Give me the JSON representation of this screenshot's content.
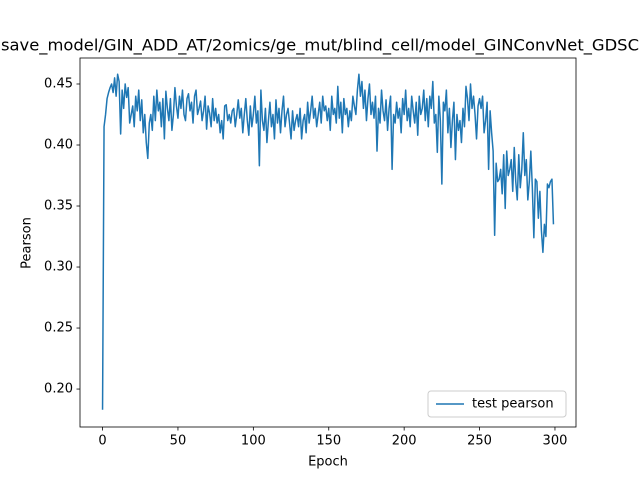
{
  "chart_data": {
    "type": "line",
    "title": "save_model/GIN_ADD_AT/2omics/ge_mut/blind_cell/model_GINConvNet_GDSC",
    "xlabel": "Epoch",
    "ylabel": "Pearson",
    "x": [
      0,
      1,
      2,
      3,
      4,
      5,
      6,
      7,
      8,
      9,
      10,
      11,
      12,
      13,
      14,
      15,
      16,
      17,
      18,
      19,
      20,
      21,
      22,
      23,
      24,
      25,
      26,
      27,
      28,
      29,
      30,
      31,
      32,
      33,
      34,
      35,
      36,
      37,
      38,
      39,
      40,
      41,
      42,
      43,
      44,
      45,
      46,
      47,
      48,
      49,
      50,
      51,
      52,
      53,
      54,
      55,
      56,
      57,
      58,
      59,
      60,
      61,
      62,
      63,
      64,
      65,
      66,
      67,
      68,
      69,
      70,
      71,
      72,
      73,
      74,
      75,
      76,
      77,
      78,
      79,
      80,
      81,
      82,
      83,
      84,
      85,
      86,
      87,
      88,
      89,
      90,
      91,
      92,
      93,
      94,
      95,
      96,
      97,
      98,
      99,
      100,
      101,
      102,
      103,
      104,
      105,
      106,
      107,
      108,
      109,
      110,
      111,
      112,
      113,
      114,
      115,
      116,
      117,
      118,
      119,
      120,
      121,
      122,
      123,
      124,
      125,
      126,
      127,
      128,
      129,
      130,
      131,
      132,
      133,
      134,
      135,
      136,
      137,
      138,
      139,
      140,
      141,
      142,
      143,
      144,
      145,
      146,
      147,
      148,
      149,
      150,
      151,
      152,
      153,
      154,
      155,
      156,
      157,
      158,
      159,
      160,
      161,
      162,
      163,
      164,
      165,
      166,
      167,
      168,
      169,
      170,
      171,
      172,
      173,
      174,
      175,
      176,
      177,
      178,
      179,
      180,
      181,
      182,
      183,
      184,
      185,
      186,
      187,
      188,
      189,
      190,
      191,
      192,
      193,
      194,
      195,
      196,
      197,
      198,
      199,
      200,
      201,
      202,
      203,
      204,
      205,
      206,
      207,
      208,
      209,
      210,
      211,
      212,
      213,
      214,
      215,
      216,
      217,
      218,
      219,
      220,
      221,
      222,
      223,
      224,
      225,
      226,
      227,
      228,
      229,
      230,
      231,
      232,
      233,
      234,
      235,
      236,
      237,
      238,
      239,
      240,
      241,
      242,
      243,
      244,
      245,
      246,
      247,
      248,
      249,
      250,
      251,
      252,
      253,
      254,
      255,
      256,
      257,
      258,
      259,
      260,
      261,
      262,
      263,
      264,
      265,
      266,
      267,
      268,
      269,
      270,
      271,
      272,
      273,
      274,
      275,
      276,
      277,
      278,
      279,
      280,
      281,
      282,
      283,
      284,
      285,
      286,
      287,
      288,
      289,
      290,
      291,
      292,
      293,
      294,
      295,
      296,
      297,
      298,
      299
    ],
    "series": [
      {
        "name": "test pearson",
        "color": "#1f77b4",
        "values": [
          0.183,
          0.415,
          0.425,
          0.438,
          0.443,
          0.447,
          0.45,
          0.443,
          0.455,
          0.44,
          0.458,
          0.452,
          0.409,
          0.445,
          0.43,
          0.45,
          0.439,
          0.447,
          0.418,
          0.425,
          0.432,
          0.415,
          0.44,
          0.428,
          0.445,
          0.42,
          0.437,
          0.41,
          0.425,
          0.402,
          0.389,
          0.418,
          0.425,
          0.412,
          0.44,
          0.42,
          0.445,
          0.428,
          0.435,
          0.415,
          0.438,
          0.405,
          0.444,
          0.43,
          0.42,
          0.438,
          0.412,
          0.425,
          0.447,
          0.432,
          0.422,
          0.44,
          0.43,
          0.445,
          0.425,
          0.42,
          0.438,
          0.442,
          0.428,
          0.435,
          0.418,
          0.44,
          0.445,
          0.425,
          0.43,
          0.436,
          0.42,
          0.428,
          0.44,
          0.413,
          0.432,
          0.426,
          0.415,
          0.438,
          0.42,
          0.43,
          0.418,
          0.425,
          0.41,
          0.42,
          0.405,
          0.432,
          0.433,
          0.42,
          0.425,
          0.418,
          0.428,
          0.43,
          0.415,
          0.425,
          0.437,
          0.422,
          0.43,
          0.41,
          0.425,
          0.438,
          0.42,
          0.408,
          0.432,
          0.415,
          0.425,
          0.44,
          0.418,
          0.428,
          0.383,
          0.445,
          0.42,
          0.412,
          0.43,
          0.402,
          0.42,
          0.435,
          0.415,
          0.425,
          0.405,
          0.437,
          0.418,
          0.43,
          0.41,
          0.428,
          0.44,
          0.415,
          0.425,
          0.43,
          0.418,
          0.405,
          0.428,
          0.412,
          0.42,
          0.425,
          0.415,
          0.43,
          0.405,
          0.42,
          0.425,
          0.41,
          0.435,
          0.418,
          0.428,
          0.44,
          0.422,
          0.43,
          0.415,
          0.425,
          0.435,
          0.418,
          0.44,
          0.428,
          0.432,
          0.42,
          0.43,
          0.412,
          0.44,
          0.425,
          0.43,
          0.418,
          0.448,
          0.422,
          0.435,
          0.41,
          0.438,
          0.425,
          0.43,
          0.415,
          0.428,
          0.42,
          0.44,
          0.432,
          0.425,
          0.445,
          0.458,
          0.44,
          0.452,
          0.43,
          0.445,
          0.42,
          0.438,
          0.45,
          0.425,
          0.435,
          0.422,
          0.44,
          0.395,
          0.43,
          0.418,
          0.445,
          0.428,
          0.42,
          0.437,
          0.412,
          0.43,
          0.44,
          0.38,
          0.425,
          0.418,
          0.435,
          0.422,
          0.43,
          0.41,
          0.438,
          0.425,
          0.445,
          0.42,
          0.43,
          0.415,
          0.44,
          0.428,
          0.418,
          0.435,
          0.408,
          0.44,
          0.425,
          0.43,
          0.445,
          0.42,
          0.438,
          0.415,
          0.44,
          0.43,
          0.452,
          0.418,
          0.425,
          0.394,
          0.44,
          0.42,
          0.368,
          0.435,
          0.428,
          0.445,
          0.41,
          0.43,
          0.398,
          0.42,
          0.435,
          0.388,
          0.425,
          0.412,
          0.42,
          0.402,
          0.43,
          0.415,
          0.448,
          0.438,
          0.42,
          0.45,
          0.43,
          0.44,
          0.425,
          0.405,
          0.432,
          0.438,
          0.43,
          0.44,
          0.41,
          0.42,
          0.435,
          0.38,
          0.428,
          0.41,
          0.395,
          0.326,
          0.385,
          0.37,
          0.372,
          0.38,
          0.36,
          0.392,
          0.348,
          0.395,
          0.375,
          0.38,
          0.388,
          0.362,
          0.398,
          0.37,
          0.355,
          0.392,
          0.365,
          0.38,
          0.41,
          0.375,
          0.388,
          0.355,
          0.37,
          0.395,
          0.365,
          0.324,
          0.372,
          0.37,
          0.34,
          0.362,
          0.33,
          0.312,
          0.335,
          0.325,
          0.368,
          0.365,
          0.37,
          0.372,
          0.335
        ]
      }
    ],
    "xlim": [
      -14.95,
      313.95
    ],
    "xticks": [
      0,
      50,
      100,
      150,
      200,
      250,
      300
    ],
    "ylim": [
      0.1689,
      0.4713
    ],
    "yticks": [
      {
        "value": 0.2,
        "label": "0.20"
      },
      {
        "value": 0.25,
        "label": "0.25"
      },
      {
        "value": 0.3,
        "label": "0.30"
      },
      {
        "value": 0.35,
        "label": "0.35"
      },
      {
        "value": 0.4,
        "label": "0.40"
      },
      {
        "value": 0.45,
        "label": "0.45"
      }
    ],
    "legend": "lower right"
  }
}
